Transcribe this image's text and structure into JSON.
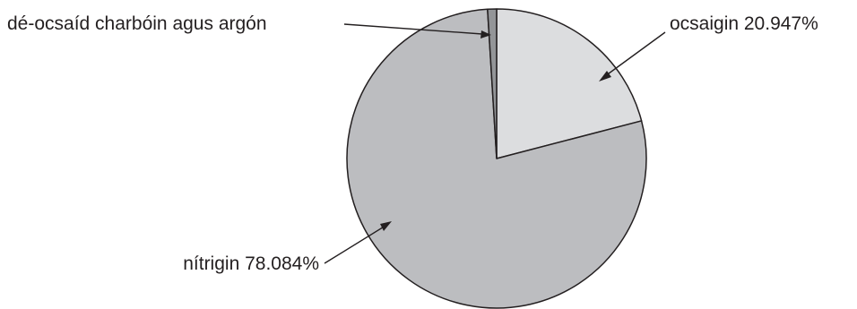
{
  "chart_data": {
    "type": "pie",
    "slices": [
      {
        "label": "ocsaigin 20.947%",
        "value": 20.947,
        "color": "#dcdddf"
      },
      {
        "label": "nítrigin 78.084%",
        "value": 78.084,
        "color": "#bcbdc0"
      },
      {
        "label": "dé-ocsaíd charbóin agus argón",
        "value": 0.969,
        "color": "#939598"
      }
    ],
    "start": "12 o'clock, clockwise",
    "title": ""
  }
}
